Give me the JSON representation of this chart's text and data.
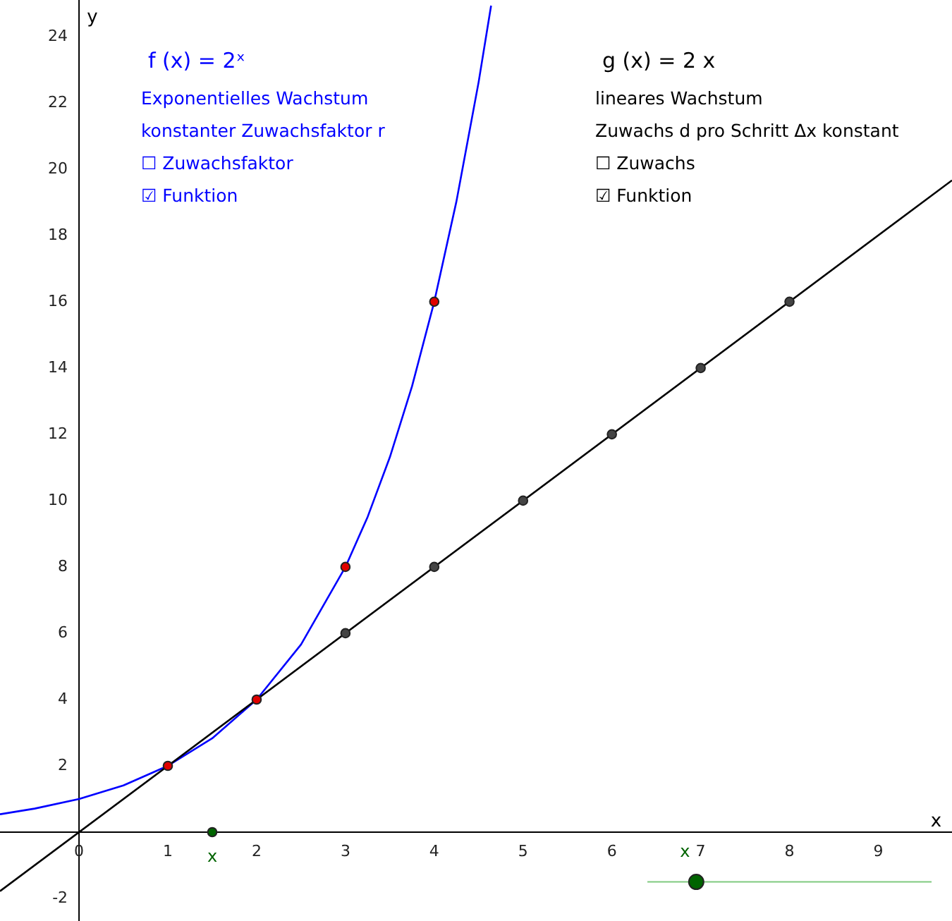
{
  "chart_data": {
    "type": "line",
    "xlabel": "x",
    "ylabel": "y",
    "xlim": [
      -0.89,
      9.83
    ],
    "ylim": [
      -2.68,
      25.1
    ],
    "xticks": [
      0,
      1,
      2,
      3,
      4,
      5,
      6,
      7,
      8,
      9
    ],
    "yticks": [
      -2,
      2,
      4,
      6,
      8,
      10,
      12,
      14,
      16,
      18,
      20,
      22,
      24
    ],
    "series": [
      {
        "color": "#0000ff",
        "x": [
          -0.89,
          -0.5,
          0,
          0.5,
          1,
          1.5,
          2,
          2.5,
          3,
          3.25,
          3.5,
          3.75,
          4,
          4.25,
          4.5,
          4.64
        ],
        "values": [
          0.54,
          0.71,
          1,
          1.41,
          2,
          2.83,
          4,
          5.66,
          8,
          9.51,
          11.31,
          13.45,
          16,
          19.03,
          22.63,
          24.93
        ]
      },
      {
        "color": "#000000",
        "x": [
          -0.89,
          9.83
        ],
        "values": [
          -1.78,
          19.66
        ]
      },
      {
        "type": "scatter",
        "color": "#444444",
        "x": [
          3,
          4,
          5,
          6,
          7,
          8
        ],
        "values": [
          6,
          8,
          10,
          12,
          14,
          16
        ]
      },
      {
        "type": "scatter",
        "color": "#e00000",
        "x": [
          1,
          2,
          3,
          4
        ],
        "values": [
          2,
          4,
          8,
          16
        ]
      },
      {
        "type": "scatter",
        "color": "#006400",
        "x": [
          1.5
        ],
        "values": [
          0
        ]
      },
      {
        "color": "#7fc97f",
        "x": [
          6.4,
          9.6
        ],
        "values": [
          -1.5,
          -1.5
        ]
      },
      {
        "type": "scatter",
        "color": "#006400",
        "x": [
          6.95
        ],
        "values": [
          -1.5
        ]
      }
    ],
    "annotations": [
      "f (x) = 2ˣ",
      "Exponentielles Wachstum",
      "konstanter Zuwachsfaktor r",
      "☐ Zuwachsfaktor",
      "☑ Funktion",
      "g (x) = 2 x",
      "lineares Wachstum",
      "Zuwachs d pro Schritt Δx konstant",
      "☐ Zuwachs",
      "☑ Funktion",
      "x",
      "x"
    ]
  }
}
